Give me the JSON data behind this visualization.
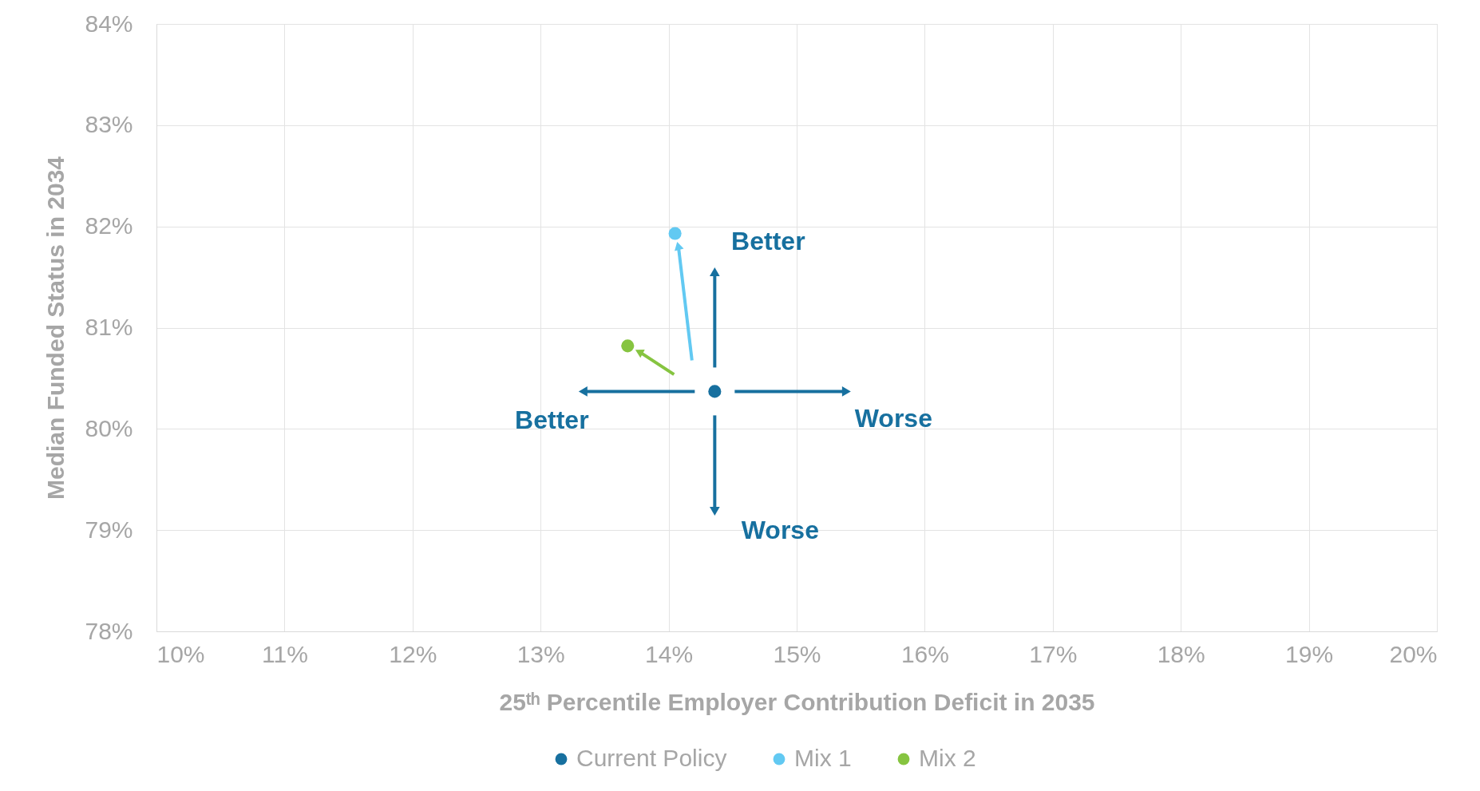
{
  "chart_data": {
    "type": "scatter",
    "xlabel": "25ᵗʰ Percentile Employer Contribution Deficit in 2035",
    "ylabel": "Median Funded Status in 2034",
    "series": [
      {
        "name": "Current Policy",
        "color": "#17709f",
        "x": [
          14.36
        ],
        "values": [
          80.37
        ]
      },
      {
        "name": "Mix 1",
        "color": "#62c9f2",
        "x": [
          14.05
        ],
        "values": [
          81.93
        ]
      },
      {
        "name": "Mix 2",
        "color": "#86c440",
        "x": [
          13.68
        ],
        "values": [
          80.82
        ]
      }
    ],
    "xlim": [
      10,
      20
    ],
    "ylim": [
      78,
      84
    ],
    "xticks": [
      {
        "value": 10,
        "label": "10%"
      },
      {
        "value": 11,
        "label": "11%"
      },
      {
        "value": 12,
        "label": "12%"
      },
      {
        "value": 13,
        "label": "13%"
      },
      {
        "value": 14,
        "label": "14%"
      },
      {
        "value": 15,
        "label": "15%"
      },
      {
        "value": 16,
        "label": "16%"
      },
      {
        "value": 17,
        "label": "17%"
      },
      {
        "value": 18,
        "label": "18%"
      },
      {
        "value": 19,
        "label": "19%"
      },
      {
        "value": 20,
        "label": "20%"
      }
    ],
    "yticks": [
      {
        "value": 78,
        "label": "78%"
      },
      {
        "value": 79,
        "label": "79%"
      },
      {
        "value": 80,
        "label": "80%"
      },
      {
        "value": 81,
        "label": "81%"
      },
      {
        "value": 82,
        "label": "82%"
      },
      {
        "value": 83,
        "label": "83%"
      },
      {
        "value": 84,
        "label": "84%"
      }
    ],
    "annotations": [
      "Better",
      "Better",
      "Worse",
      "Worse"
    ],
    "grid": true,
    "legend": "bottom",
    "marker": "circle"
  }
}
